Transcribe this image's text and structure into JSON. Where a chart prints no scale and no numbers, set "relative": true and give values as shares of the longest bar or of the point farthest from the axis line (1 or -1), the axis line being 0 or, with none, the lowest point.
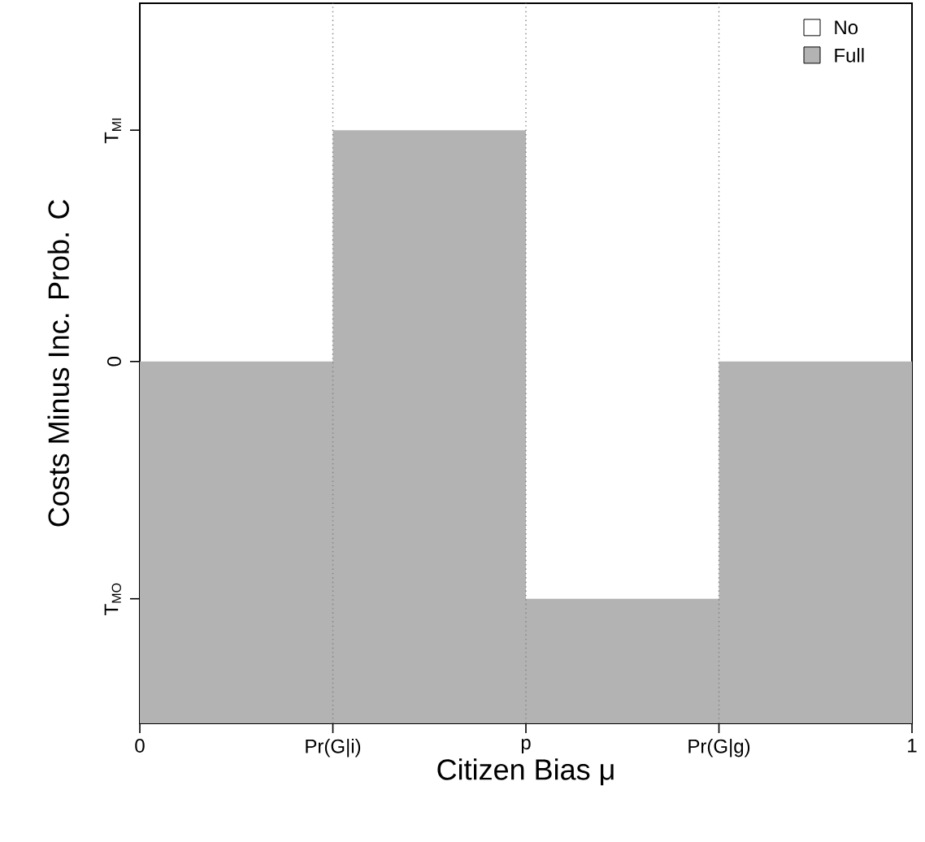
{
  "chart_data": {
    "type": "area",
    "relative": true,
    "xlabel": "Citizen Bias μ",
    "ylabel": "Costs Minus Inc. Prob. C",
    "x": [
      0,
      0.25,
      0.25,
      0.5,
      0.5,
      0.75,
      0.75,
      1
    ],
    "series": [
      {
        "name": "No",
        "color": "#ffffff",
        "values": [
          null,
          null,
          null,
          null,
          null,
          null,
          null,
          null
        ]
      },
      {
        "name": "Full",
        "color": "#b3b3b3",
        "values": [
          0.61,
          0.61,
          1,
          1,
          0.21,
          0.21,
          0.61,
          0.61
        ]
      }
    ],
    "xlim": [
      0,
      1
    ],
    "xticks": [
      0,
      {
        "value": 0.25,
        "label": "Pr(G|i)"
      },
      {
        "value": 0.5,
        "label": "p"
      },
      {
        "value": 0.75,
        "label": "Pr(G|g)"
      },
      1
    ],
    "annotations": [
      "T$_{MO}$",
      "0",
      "T$_{MI}$"
    ],
    "ref_lines": [
      {
        "axis": "x",
        "value": 0.25,
        "color": "#808080",
        "line_style": "dotted"
      },
      {
        "axis": "x",
        "value": 0.5,
        "color": "#808080",
        "line_style": "dotted"
      },
      {
        "axis": "x",
        "value": 0.75,
        "color": "#808080",
        "line_style": "dotted"
      }
    ],
    "legend": "top right"
  }
}
